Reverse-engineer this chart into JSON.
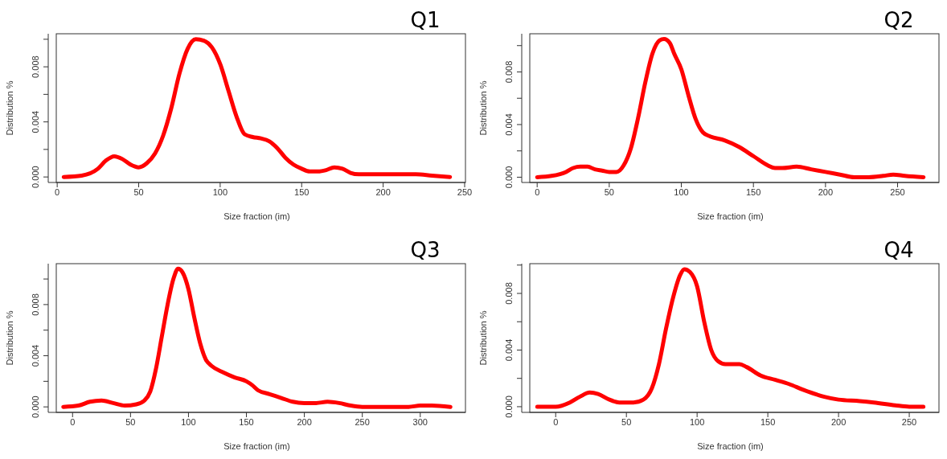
{
  "chart_data": [
    {
      "type": "line",
      "title": "Q1",
      "xlabel": "Size fraction (im)",
      "ylabel": "Distribution %",
      "xlim": [
        -5.5,
        250.5
      ],
      "xticks": [
        0,
        50,
        100,
        150,
        200,
        250
      ],
      "ylim": [
        -0.0004,
        0.0104
      ],
      "yticks": [
        {
          "value": 0,
          "label": "0.000"
        },
        {
          "value": 0.002,
          "label": null
        },
        {
          "value": 0.004,
          "label": "0.004"
        },
        {
          "value": 0.006,
          "label": null
        },
        {
          "value": 0.008,
          "label": "0.008"
        },
        {
          "value": 0.01,
          "label": null
        }
      ],
      "grid": false,
      "series": [
        {
          "color": "#ff0000",
          "x": [
            4,
            15,
            25,
            30,
            35,
            40,
            45,
            50,
            55,
            60,
            65,
            70,
            75,
            80,
            85,
            90,
            95,
            100,
            105,
            110,
            115,
            120,
            125,
            130,
            135,
            140,
            145,
            150,
            155,
            160,
            165,
            170,
            175,
            180,
            185,
            190,
            200,
            220,
            230,
            241
          ],
          "values": [
            0,
            0.0001,
            0.0006,
            0.0012,
            0.0015,
            0.0013,
            0.0009,
            0.0007,
            0.001,
            0.0017,
            0.003,
            0.005,
            0.0075,
            0.0093,
            0.01,
            0.0099,
            0.0094,
            0.0082,
            0.0063,
            0.0044,
            0.0031,
            0.0029,
            0.0028,
            0.0026,
            0.0021,
            0.0014,
            0.0009,
            0.0006,
            0.0004,
            0.0004,
            0.0005,
            0.0007,
            0.0006,
            0.0003,
            0.0002,
            0.0002,
            0.0002,
            0.0002,
            0.0001,
            0
          ]
        }
      ]
    },
    {
      "type": "line",
      "title": "Q2",
      "xlabel": "Size fraction (im)",
      "ylabel": "Distribution %",
      "xlim": [
        -10.7,
        278.7
      ],
      "xticks": [
        0,
        50,
        100,
        150,
        200,
        250
      ],
      "ylim": [
        -0.0004,
        0.0109
      ],
      "yticks": [
        {
          "value": 0,
          "label": "0.000"
        },
        {
          "value": 0.002,
          "label": null
        },
        {
          "value": 0.004,
          "label": "0.004"
        },
        {
          "value": 0.006,
          "label": null
        },
        {
          "value": 0.008,
          "label": "0.008"
        },
        {
          "value": 0.01,
          "label": null
        }
      ],
      "grid": false,
      "series": [
        {
          "color": "#ff0000",
          "x": [
            0,
            10,
            20,
            25,
            30,
            35,
            40,
            45,
            50,
            55,
            60,
            65,
            70,
            75,
            80,
            85,
            88,
            92,
            95,
            100,
            105,
            110,
            115,
            120,
            130,
            140,
            150,
            160,
            165,
            170,
            180,
            190,
            200,
            210,
            220,
            230,
            240,
            247,
            255,
            268
          ],
          "values": [
            0,
            0.0001,
            0.0004,
            0.0007,
            0.0008,
            0.0008,
            0.0006,
            0.0005,
            0.0004,
            0.0004,
            0.0009,
            0.0022,
            0.0045,
            0.0072,
            0.0094,
            0.0104,
            0.0105,
            0.0102,
            0.0094,
            0.0082,
            0.0062,
            0.0044,
            0.0034,
            0.0031,
            0.0028,
            0.0023,
            0.0016,
            0.0009,
            0.0007,
            0.0007,
            0.0008,
            0.0006,
            0.0004,
            0.0002,
            0,
            0,
            0.0001,
            0.0002,
            0.0001,
            0
          ]
        }
      ]
    },
    {
      "type": "line",
      "title": "Q3",
      "xlabel": "Size fraction (im)",
      "ylabel": "Distribution %",
      "xlim": [
        -21,
        339
      ],
      "xticks": [
        0,
        50,
        100,
        150,
        200,
        250,
        300
      ],
      "ylim": [
        -0.00043,
        0.0112
      ],
      "yticks": [
        {
          "value": 0,
          "label": "0.000"
        },
        {
          "value": 0.002,
          "label": null
        },
        {
          "value": 0.004,
          "label": "0.004"
        },
        {
          "value": 0.006,
          "label": null
        },
        {
          "value": 0.008,
          "label": "0.008"
        },
        {
          "value": 0.01,
          "label": null
        }
      ],
      "grid": false,
      "series": [
        {
          "color": "#ff0000",
          "x": [
            -8,
            5,
            15,
            25,
            35,
            45,
            55,
            62,
            67,
            72,
            77,
            82,
            87,
            91,
            95,
            100,
            105,
            110,
            115,
            120,
            130,
            140,
            150,
            155,
            160,
            170,
            180,
            190,
            200,
            210,
            220,
            230,
            240,
            250,
            290,
            300,
            310,
            326
          ],
          "values": [
            0,
            0.0001,
            0.0004,
            0.0005,
            0.0003,
            0.0001,
            0.0002,
            0.0005,
            0.0012,
            0.003,
            0.0055,
            0.008,
            0.01,
            0.0108,
            0.0105,
            0.0092,
            0.007,
            0.005,
            0.0037,
            0.0032,
            0.0027,
            0.0023,
            0.002,
            0.0017,
            0.0013,
            0.001,
            0.0007,
            0.0004,
            0.0003,
            0.0003,
            0.0004,
            0.0003,
            0.0001,
            0,
            0,
            0.0001,
            0.0001,
            0
          ]
        }
      ]
    },
    {
      "type": "line",
      "title": "Q4",
      "xlabel": "Size fraction (im)",
      "ylabel": "Distribution %",
      "xlim": [
        -24,
        271
      ],
      "xticks": [
        0,
        50,
        100,
        150,
        200,
        250
      ],
      "ylim": [
        -0.0004,
        0.0101
      ],
      "yticks": [
        {
          "value": 0,
          "label": "0.000"
        },
        {
          "value": 0.002,
          "label": null
        },
        {
          "value": 0.004,
          "label": "0.004"
        },
        {
          "value": 0.006,
          "label": null
        },
        {
          "value": 0.008,
          "label": "0.008"
        },
        {
          "value": 0.01,
          "label": null
        }
      ],
      "grid": false,
      "series": [
        {
          "color": "#ff0000",
          "x": [
            -13,
            0,
            10,
            17,
            24,
            30,
            38,
            45,
            55,
            62,
            68,
            73,
            78,
            83,
            88,
            91,
            95,
            100,
            105,
            110,
            115,
            120,
            130,
            135,
            145,
            155,
            165,
            175,
            190,
            200,
            215,
            225,
            240,
            250,
            260
          ],
          "values": [
            0,
            0,
            0.0003,
            0.0007,
            0.001,
            0.0009,
            0.0005,
            0.0003,
            0.0003,
            0.0005,
            0.0013,
            0.003,
            0.0055,
            0.0077,
            0.0093,
            0.0097,
            0.0095,
            0.0085,
            0.006,
            0.004,
            0.0032,
            0.003,
            0.003,
            0.0028,
            0.0022,
            0.0019,
            0.0016,
            0.0012,
            0.0007,
            0.0005,
            0.0004,
            0.0003,
            0.0001,
            0,
            0
          ]
        }
      ]
    }
  ]
}
